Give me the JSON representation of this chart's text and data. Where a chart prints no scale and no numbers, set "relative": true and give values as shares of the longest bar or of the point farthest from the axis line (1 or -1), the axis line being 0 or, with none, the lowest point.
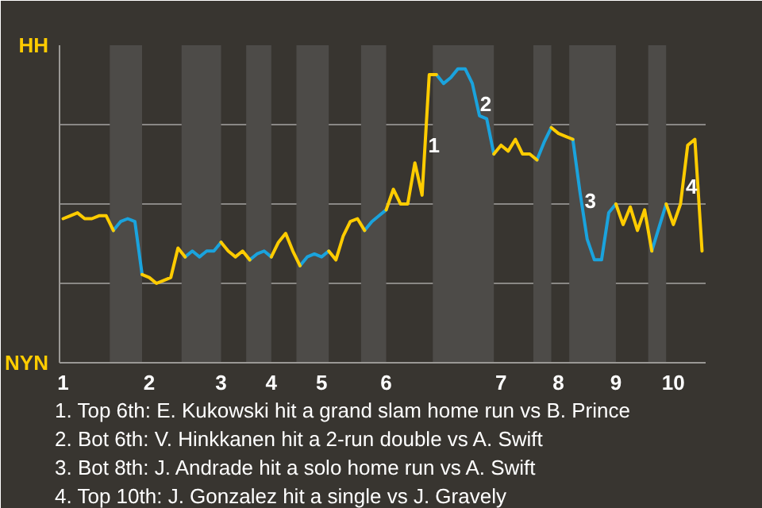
{
  "chart_data": {
    "type": "line",
    "relative": true,
    "categories": [
      "1",
      null,
      null,
      null,
      null,
      null,
      null,
      null,
      null,
      null,
      null,
      null,
      "2",
      null,
      null,
      null,
      null,
      null,
      null,
      null,
      null,
      null,
      "3",
      null,
      null,
      null,
      null,
      null,
      null,
      "4",
      null,
      null,
      null,
      null,
      null,
      null,
      "5",
      null,
      null,
      null,
      null,
      null,
      null,
      null,
      null,
      "6",
      null,
      null,
      null,
      null,
      null,
      null,
      null,
      null,
      null,
      null,
      null,
      null,
      null,
      null,
      null,
      "7",
      null,
      null,
      null,
      null,
      null,
      null,
      null,
      "8",
      null,
      null,
      null,
      null,
      null,
      null,
      null,
      "9",
      null,
      null,
      null,
      null,
      null,
      null,
      null,
      "10",
      null,
      null,
      null,
      null
    ],
    "grid": "y",
    "line_style": "solid",
    "series": [
      {
        "color": "#ffcc00",
        "values": [
          0.49,
          0.5,
          0.51,
          0.49,
          0.49,
          0.5,
          0.5,
          0.45,
          null,
          null,
          null,
          0.3,
          0.29,
          0.27,
          0.28,
          0.29,
          0.39,
          0.36,
          null,
          null,
          null,
          null,
          0.41,
          0.38,
          0.36,
          0.38,
          0.35,
          null,
          null,
          0.36,
          0.41,
          0.44,
          0.38,
          0.33,
          null,
          null,
          null,
          0.38,
          0.35,
          0.43,
          0.48,
          0.49,
          0.45,
          null,
          null,
          0.52,
          0.59,
          0.54,
          0.54,
          0.68,
          0.57,
          0.98,
          0.98,
          null,
          null,
          null,
          null,
          null,
          null,
          null,
          0.71,
          0.74,
          0.72,
          0.76,
          0.71,
          0.71,
          0.69,
          null,
          0.8,
          0.78,
          0.77,
          0.76,
          null,
          null,
          null,
          null,
          null,
          0.54,
          0.47,
          0.53,
          0.45,
          0.52,
          0.38,
          null,
          0.54,
          0.47,
          0.54,
          0.74,
          0.76,
          0.38
        ]
      },
      {
        "color": "#1aa3dd",
        "values": [
          null,
          null,
          null,
          null,
          null,
          null,
          null,
          0.45,
          0.48,
          0.49,
          0.48,
          0.3,
          null,
          null,
          null,
          null,
          null,
          0.36,
          0.38,
          0.36,
          0.38,
          0.38,
          0.41,
          null,
          null,
          null,
          0.35,
          0.37,
          0.38,
          0.36,
          null,
          null,
          null,
          0.33,
          0.36,
          0.37,
          0.36,
          0.38,
          null,
          null,
          null,
          null,
          0.45,
          0.48,
          0.5,
          0.52,
          null,
          null,
          null,
          null,
          null,
          null,
          0.98,
          0.95,
          0.97,
          1.0,
          1.0,
          0.95,
          0.84,
          0.83,
          0.71,
          null,
          null,
          null,
          null,
          null,
          0.69,
          0.75,
          0.8,
          null,
          null,
          0.76,
          0.58,
          0.42,
          0.35,
          0.35,
          0.51,
          0.54,
          null,
          null,
          null,
          null,
          0.38,
          0.46,
          0.54,
          null,
          null,
          null,
          null,
          null
        ]
      }
    ],
    "annotations": [
      "HH",
      "NYN",
      {
        "text": "1",
        "y": 0.74
      },
      {
        "text": "2",
        "y": 0.88
      },
      {
        "text": "3",
        "y": 0.55
      },
      {
        "text": "4",
        "y": 0.6
      },
      "1. Top 6th: E. Kukowski hit a grand slam home run vs B. Prince",
      "2. Bot 6th: V. Hinkkanen hit a 2-run double vs A. Swift",
      "3. Bot 8th: J. Andrade hit a solo home run vs A. Swift",
      "4. Top 10th: J. Gonzalez hit a single vs J. Gravely"
    ]
  }
}
